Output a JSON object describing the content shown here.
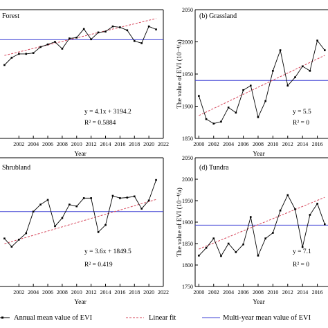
{
  "chart_data": [
    {
      "type": "line",
      "panel_label": "Forest",
      "xlabel": "Year",
      "ylabel": "",
      "xlim": [
        1999,
        2022
      ],
      "ylim": [
        3005,
        3305
      ],
      "xticks": [
        "2002",
        "2004",
        "2006",
        "2008",
        "2010",
        "2012",
        "2014",
        "2016",
        "2018",
        "2020",
        "2022"
      ],
      "yticks": [],
      "x": [
        2000,
        2001,
        2002,
        2003,
        2004,
        2005,
        2006,
        2007,
        2008,
        2009,
        2010,
        2011,
        2012,
        2013,
        2014,
        2015,
        2016,
        2017,
        2018,
        2019,
        2020,
        2021
      ],
      "series": [
        {
          "values": [
            3176,
            3193,
            3202,
            3202,
            3204,
            3218,
            3224,
            3230,
            3214,
            3238,
            3240,
            3260,
            3236,
            3252,
            3254,
            3266,
            3264,
            3257,
            3232,
            3227,
            3266,
            3259
          ]
        }
      ],
      "fit": {
        "slope": 4.1,
        "intercept": 3194.2
      },
      "mean_line": 3235,
      "annotations": {
        "equation": "y = 4.1x + 3194.2",
        "r2_label": "R² = 0.5884"
      }
    },
    {
      "type": "line",
      "panel_label": "(b) Grassland",
      "xlabel": "Year",
      "ylabel": "The value of EVI (10⁻⁴/a)",
      "xlim": [
        1999.5,
        2018
      ],
      "ylim": [
        1850,
        2050
      ],
      "xticks": [
        "2000",
        "2002",
        "2004",
        "2006",
        "2008",
        "2010",
        "2012",
        "2014",
        "2016"
      ],
      "yticks": [
        "1850",
        "1900",
        "1950",
        "2000",
        "2050"
      ],
      "x": [
        2000,
        2001,
        2002,
        2003,
        2004,
        2005,
        2006,
        2007,
        2008,
        2009,
        2010,
        2011,
        2012,
        2013,
        2014,
        2015,
        2016,
        2017
      ],
      "series": [
        {
          "values": [
            1916,
            1880,
            1873,
            1876,
            1898,
            1890,
            1925,
            1932,
            1883,
            1908,
            1955,
            1987,
            1932,
            1945,
            1962,
            1955,
            2002,
            1987
          ]
        }
      ],
      "fit": {
        "slope": 5.5,
        "intercept": 1880
      },
      "mean_line": 1940,
      "annotations": {
        "equation": "y = 5.5",
        "r2_label": "R² = 0"
      }
    },
    {
      "type": "line",
      "panel_label": "Shrubland",
      "xlabel": "Year",
      "ylabel": "",
      "xlim": [
        1999,
        2022
      ],
      "ylim": [
        1780,
        2000
      ],
      "xticks": [
        "2002",
        "2004",
        "2006",
        "2008",
        "2010",
        "2012",
        "2014",
        "2016",
        "2018",
        "2020",
        "2022"
      ],
      "yticks": [],
      "x": [
        2000,
        2001,
        2002,
        2003,
        2004,
        2005,
        2006,
        2007,
        2008,
        2009,
        2010,
        2011,
        2012,
        2013,
        2014,
        2015,
        2016,
        2017,
        2018,
        2019,
        2020,
        2021
      ],
      "series": [
        {
          "values": [
            1862,
            1848,
            1860,
            1871,
            1908,
            1920,
            1928,
            1883,
            1897,
            1920,
            1917,
            1931,
            1931,
            1873,
            1885,
            1935,
            1931,
            1932,
            1934,
            1913,
            1927,
            1962
          ]
        }
      ],
      "fit": {
        "slope": 3.6,
        "intercept": 1849.5
      },
      "mean_line": 1908,
      "annotations": {
        "equation": "y = 3.6x + 1849.5",
        "r2_label": "R² = 0.419"
      }
    },
    {
      "type": "line",
      "panel_label": "(d) Tundra",
      "xlabel": "Year",
      "ylabel": "The value of EVI (10⁻⁴/a)",
      "xlim": [
        1999.5,
        2018
      ],
      "ylim": [
        1750,
        2050
      ],
      "xticks": [
        "2000",
        "2002",
        "2004",
        "2006",
        "2008",
        "2010",
        "2012",
        "2014",
        "2016"
      ],
      "yticks": [
        "1750",
        "1800",
        "1850",
        "1900",
        "1950",
        "2000",
        "2050"
      ],
      "x": [
        2000,
        2001,
        2002,
        2003,
        2004,
        2005,
        2006,
        2007,
        2008,
        2009,
        2010,
        2011,
        2012,
        2013,
        2014,
        2015,
        2016,
        2017
      ],
      "series": [
        {
          "values": [
            1822,
            1840,
            1862,
            1821,
            1850,
            1830,
            1848,
            1912,
            1822,
            1862,
            1875,
            1927,
            1963,
            1930,
            1842,
            1917,
            1943,
            1895
          ]
        }
      ],
      "fit": {
        "slope": 7.1,
        "intercept": 1830
      },
      "mean_line": 1893,
      "annotations": {
        "equation": "y = 7.1",
        "r2_label": "R² = 0"
      }
    }
  ],
  "legend": {
    "placement": "bottom",
    "items": [
      {
        "label": "Annual mean value of EVI"
      },
      {
        "label": "Linear fit"
      },
      {
        "label": "Multi-year mean value of EVI"
      }
    ]
  },
  "colors": {
    "series": "#000000",
    "fit": "#d6455a",
    "mean": "#3b3fd4"
  }
}
